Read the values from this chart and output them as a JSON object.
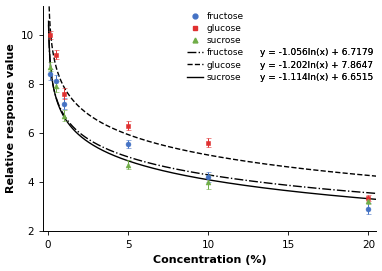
{
  "title": "",
  "xlabel": "Concentration (%)",
  "ylabel": "Relative response value",
  "xlim": [
    -0.3,
    20.5
  ],
  "ylim": [
    2,
    11.2
  ],
  "yticks": [
    2,
    4,
    6,
    8,
    10
  ],
  "xticks": [
    0,
    5,
    10,
    15,
    20
  ],
  "fructose": {
    "x": [
      0.1,
      0.5,
      1.0,
      5.0,
      10.0,
      20.0
    ],
    "y": [
      8.4,
      8.1,
      7.2,
      5.55,
      4.2,
      2.9
    ],
    "yerr": [
      0.22,
      0.28,
      0.22,
      0.18,
      0.22,
      0.22
    ],
    "color": "#4472c4",
    "marker": "o",
    "label": "fructose",
    "eq": "y = -1.056ln(x) + 6.7179",
    "a": -1.056,
    "b": 6.7179,
    "linestyle": "-."
  },
  "glucose": {
    "x": [
      0.1,
      0.5,
      1.0,
      5.0,
      10.0,
      20.0
    ],
    "y": [
      10.0,
      9.2,
      7.6,
      6.3,
      5.6,
      3.35
    ],
    "yerr": [
      0.15,
      0.2,
      0.22,
      0.18,
      0.18,
      0.12
    ],
    "color": "#e03030",
    "marker": "s",
    "label": "glucose",
    "eq": "y = -1.202ln(x) + 7.8647",
    "a": -1.202,
    "b": 7.8647,
    "linestyle": "--"
  },
  "sucrose": {
    "x": [
      0.1,
      0.5,
      1.0,
      5.0,
      10.0,
      20.0
    ],
    "y": [
      8.7,
      7.9,
      6.7,
      4.7,
      4.0,
      3.2
    ],
    "yerr": [
      0.18,
      0.22,
      0.22,
      0.18,
      0.28,
      0.12
    ],
    "color": "#70ad47",
    "marker": "^",
    "label": "sucrose",
    "eq": "y = -1.114ln(x) + 6.6515",
    "a": -1.114,
    "b": 6.6515,
    "linestyle": "-"
  },
  "bg_color": "#ffffff",
  "axis_label_fontsize": 8,
  "tick_fontsize": 7.5,
  "legend_fontsize": 6.5
}
